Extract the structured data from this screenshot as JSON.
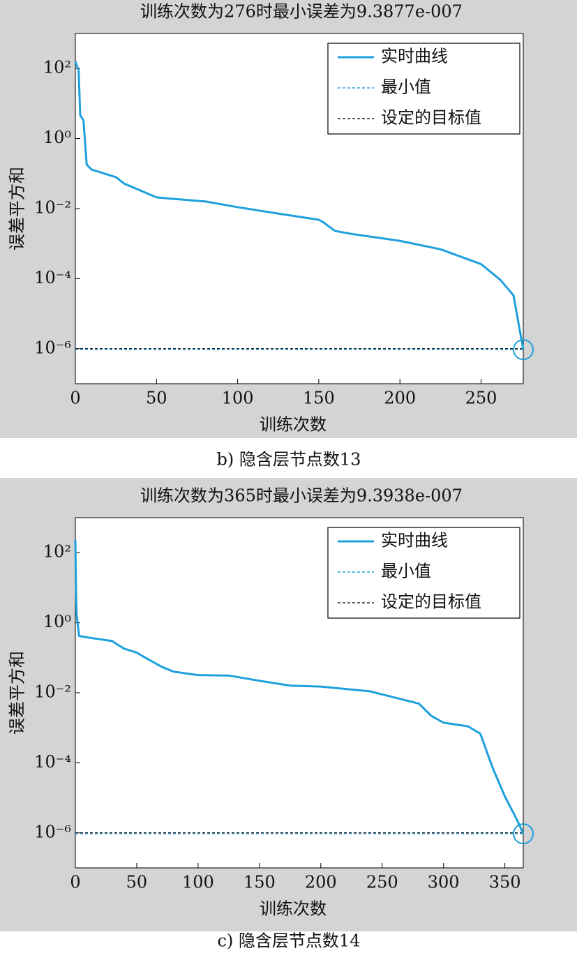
{
  "chart_data": [
    {
      "type": "line",
      "title": "训练次数为276时最小误差为9.3877e-007",
      "xlabel": "训练次数",
      "ylabel": "误差平方和",
      "caption": "b) 隐含层节点数13",
      "x": [
        0,
        2,
        3,
        5,
        7,
        10,
        25,
        30,
        40,
        50,
        60,
        80,
        100,
        125,
        150,
        153,
        160,
        170,
        190,
        200,
        225,
        250,
        262,
        270,
        276
      ],
      "series": [
        {
          "name": "实时曲线",
          "color": "#1ea0dc",
          "values": [
            158,
            91,
            4.6,
            3.3,
            0.18,
            0.13,
            0.079,
            0.052,
            0.033,
            0.021,
            0.019,
            0.016,
            0.011,
            0.0072,
            0.0048,
            0.004,
            0.0023,
            0.0019,
            0.0014,
            0.0012,
            0.00069,
            0.00026,
            9.1e-05,
            3.3e-05,
            9.3877e-07
          ]
        }
      ],
      "min_line": {
        "name": "最小值",
        "color": "#1ea0dc",
        "value": 9.3877e-07
      },
      "target_line": {
        "name": "设定的目标值",
        "color": "#1a2a3a",
        "value": 1e-06
      },
      "xlim": [
        0,
        276
      ],
      "xticks": [
        0,
        50,
        100,
        150,
        200,
        250
      ],
      "ylim": [
        1e-07,
        1000
      ],
      "yscale": "log",
      "yticks": [
        {
          "value": 100,
          "label": "10²"
        },
        {
          "value": 1,
          "label": "10⁰"
        },
        {
          "value": 0.01,
          "label": "10⁻²"
        },
        {
          "value": 0.0001,
          "label": "10⁻⁴"
        },
        {
          "value": 1e-06,
          "label": "10⁻⁶"
        }
      ],
      "legend": "upper right"
    },
    {
      "type": "line",
      "title": "训练次数为365时最小误差为9.3938e-007",
      "xlabel": "训练次数",
      "ylabel": "误差平方和",
      "caption": "c) 隐含层节点数14",
      "x": [
        0,
        0.5,
        1,
        3,
        10,
        30,
        35,
        40,
        45,
        50,
        55,
        70,
        80,
        100,
        125,
        150,
        175,
        200,
        240,
        280,
        290,
        300,
        320,
        330,
        340,
        350,
        360,
        365
      ],
      "series": [
        {
          "name": "实时曲线",
          "color": "#1ea0dc",
          "values": [
            229,
            11,
            1.8,
            0.42,
            0.38,
            0.3,
            0.23,
            0.18,
            0.16,
            0.14,
            0.11,
            0.056,
            0.04,
            0.032,
            0.031,
            0.022,
            0.016,
            0.015,
            0.011,
            0.0049,
            0.0022,
            0.0014,
            0.0011,
            0.00068,
            7.2e-05,
            1.1e-05,
            2.3e-06,
            9.3938e-07
          ]
        }
      ],
      "min_line": {
        "name": "最小值",
        "color": "#1ea0dc",
        "value": 9.3938e-07
      },
      "target_line": {
        "name": "设定的目标值",
        "color": "#1a2a3a",
        "value": 1e-06
      },
      "xlim": [
        0,
        365
      ],
      "xticks": [
        0,
        50,
        100,
        150,
        200,
        250,
        300,
        350
      ],
      "ylim": [
        1e-07,
        1000
      ],
      "yscale": "log",
      "yticks": [
        {
          "value": 100,
          "label": "10²"
        },
        {
          "value": 1,
          "label": "10⁰"
        },
        {
          "value": 0.01,
          "label": "10⁻²"
        },
        {
          "value": 0.0001,
          "label": "10⁻⁴"
        },
        {
          "value": 1e-06,
          "label": "10⁻⁶"
        }
      ],
      "legend": "upper right"
    }
  ]
}
